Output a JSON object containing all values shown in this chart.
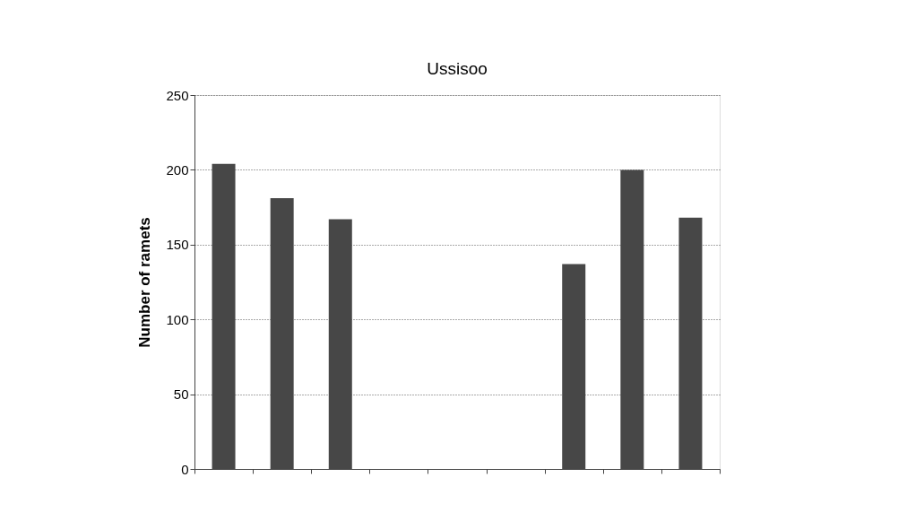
{
  "chart_data": {
    "type": "bar",
    "title": "Ussisoo",
    "ylabel": "Number of ramets",
    "categories": [
      null,
      null,
      null,
      null,
      null,
      null,
      null,
      null,
      null
    ],
    "values": [
      204,
      181,
      167,
      null,
      null,
      null,
      137,
      200,
      168
    ],
    "color": "#474747",
    "ylim": [
      0,
      250
    ],
    "yticks": [
      0,
      50,
      100,
      150,
      200,
      250
    ],
    "grid": "y",
    "tick_labels": "y"
  }
}
